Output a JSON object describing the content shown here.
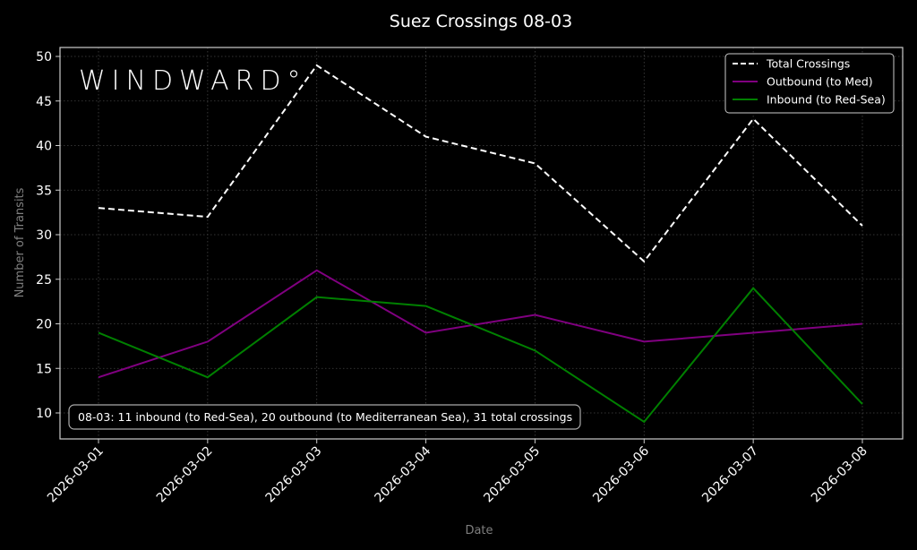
{
  "chart_data": {
    "type": "line",
    "title": "Suez Crossings 08-03",
    "xlabel": "Date",
    "ylabel": "Number of Transits",
    "categories": [
      "2026-03-01",
      "2026-03-02",
      "2026-03-03",
      "2026-03-04",
      "2026-03-05",
      "2026-03-06",
      "2026-03-07",
      "2026-03-08"
    ],
    "series": [
      {
        "name": "Total Crossings",
        "color": "#ffffff",
        "style": "dashed",
        "values": [
          33,
          32,
          49,
          41,
          38,
          27,
          43,
          31
        ]
      },
      {
        "name": "Outbound (to Med)",
        "color": "#800080",
        "style": "solid",
        "values": [
          14,
          18,
          26,
          19,
          21,
          18,
          19,
          20
        ]
      },
      {
        "name": "Inbound (to Red-Sea)",
        "color": "#008000",
        "style": "solid",
        "values": [
          19,
          14,
          23,
          22,
          17,
          9,
          24,
          11
        ]
      }
    ],
    "yticks": [
      10,
      15,
      20,
      25,
      30,
      35,
      40,
      45,
      50
    ],
    "ylim": [
      8,
      51.2
    ],
    "grid": true,
    "legend_position": "upper right",
    "annotation": "08-03: 11 inbound (to Red-Sea), 20 outbound (to Mediterranean Sea), 31 total crossings",
    "watermark": "WINDWARD°"
  },
  "colors": {
    "background": "#000000",
    "axes": "#cccccc",
    "grid": "#444444",
    "axis_label": "#7f7f7f"
  }
}
